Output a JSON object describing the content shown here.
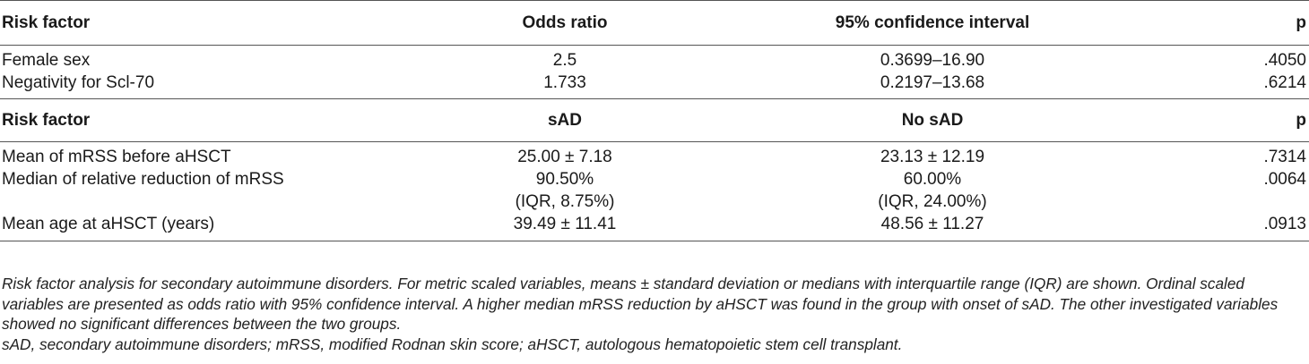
{
  "table": {
    "section1": {
      "headers": [
        "Risk factor",
        "Odds ratio",
        "95% confidence interval",
        "p"
      ],
      "rows": [
        [
          "Female sex",
          "2.5",
          "0.3699–16.90",
          ".4050"
        ],
        [
          "Negativity for Scl-70",
          "1.733",
          "0.2197–13.68",
          ".6214"
        ]
      ]
    },
    "section2": {
      "headers": [
        "Risk factor",
        "sAD",
        "No sAD",
        "p"
      ],
      "rows": [
        [
          "Mean of mRSS before aHSCT",
          "25.00 ± 7.18",
          "23.13 ± 12.19",
          ".7314"
        ],
        [
          "Median of relative reduction of mRSS",
          "90.50%",
          "60.00%",
          ".0064"
        ],
        [
          "",
          "(IQR, 8.75%)",
          "(IQR, 24.00%)",
          ""
        ],
        [
          "Mean age at aHSCT (years)",
          "39.49 ± 11.41",
          "48.56 ± 11.27",
          ".0913"
        ]
      ]
    }
  },
  "caption": "Risk factor analysis for secondary autoimmune disorders. For metric scaled variables, means ± standard deviation or medians with interquartile range (IQR) are shown. Ordinal scaled variables are presented as odds ratio with 95% confidence interval. A higher median mRSS reduction by aHSCT was found in the group with onset of sAD. The other investigated variables showed no significant differences between the two groups.",
  "abbreviations": "sAD, secondary autoimmune disorders; mRSS, modified Rodnan skin score; aHSCT, autologous hematopoietic stem cell transplant.",
  "colors": {
    "text": "#1a1a1a",
    "rule": "#555555",
    "background": "#ffffff"
  }
}
